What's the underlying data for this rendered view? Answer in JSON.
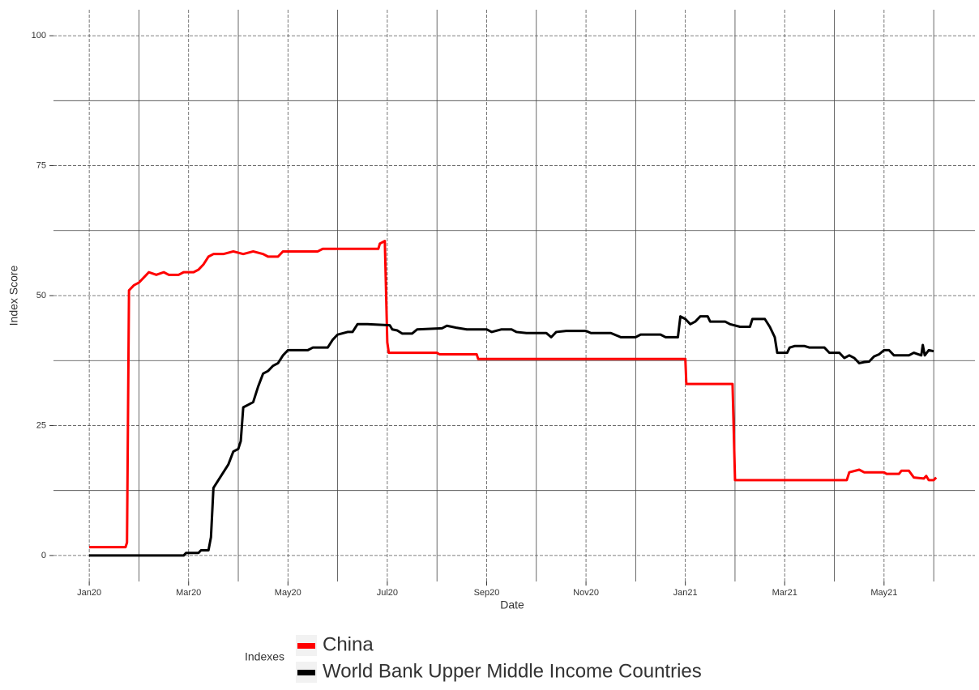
{
  "chart_data": {
    "type": "line",
    "x_label": "Date",
    "y_label": "Index Score",
    "legend_title": "Indexes",
    "legend_position": "bottom",
    "xlim": [
      -0.72,
      17.83
    ],
    "ylim": [
      -5,
      105
    ],
    "xticks": [
      {
        "value": 0,
        "label": "Jan20"
      },
      {
        "value": 2,
        "label": "Mar20"
      },
      {
        "value": 4,
        "label": "May20"
      },
      {
        "value": 6,
        "label": "Jul20"
      },
      {
        "value": 8,
        "label": "Sep20"
      },
      {
        "value": 10,
        "label": "Nov20"
      },
      {
        "value": 12,
        "label": "Jan21"
      },
      {
        "value": 14,
        "label": "Mar21"
      },
      {
        "value": 16,
        "label": "May21"
      }
    ],
    "yticks": [
      0,
      25,
      50,
      75,
      100
    ],
    "x_minor_gridlines": [
      1,
      3,
      5,
      7,
      9,
      11,
      13,
      15,
      17
    ],
    "y_minor_gridlines": [
      12.5,
      37.5,
      62.5,
      87.5
    ],
    "grid": true,
    "series": [
      {
        "name": "China",
        "color": "#ff0000",
        "x": [
          0,
          0.73,
          0.76,
          0.8,
          0.9,
          1.0,
          1.1,
          1.2,
          1.35,
          1.5,
          1.6,
          1.8,
          1.9,
          2.1,
          2.2,
          2.3,
          2.4,
          2.5,
          2.7,
          2.9,
          3.1,
          3.3,
          3.5,
          3.6,
          3.8,
          3.9,
          4.2,
          4.6,
          4.7,
          5.0,
          5.5,
          5.82,
          5.85,
          5.95,
          6.0,
          6.03,
          6.1,
          7.0,
          7.05,
          7.8,
          7.83,
          12.0,
          12.02,
          12.95,
          13.0,
          15.25,
          15.3,
          15.5,
          15.6,
          16.0,
          16.05,
          16.3,
          16.35,
          16.5,
          16.6,
          16.8,
          16.85,
          16.9,
          17.0,
          17.05
        ],
        "values": [
          1.6,
          1.6,
          2.5,
          51,
          52,
          52.5,
          53.5,
          54.5,
          54,
          54.5,
          54,
          54,
          54.5,
          54.5,
          55,
          56,
          57.5,
          58,
          58,
          58.5,
          58,
          58.5,
          58,
          57.5,
          57.5,
          58.5,
          58.5,
          58.5,
          59,
          59,
          59,
          59,
          60,
          60.5,
          41,
          39,
          39,
          39,
          38.7,
          38.7,
          37.8,
          37.8,
          33,
          33,
          14.5,
          14.5,
          16,
          16.5,
          16,
          16,
          15.7,
          15.7,
          16.3,
          16.3,
          15,
          14.8,
          15.3,
          14.5,
          14.5,
          15
        ]
      },
      {
        "name": "World Bank Upper Middle Income Countries",
        "color": "#000000",
        "x": [
          0,
          1.9,
          1.95,
          2.2,
          2.25,
          2.4,
          2.45,
          2.5,
          2.6,
          2.7,
          2.8,
          2.9,
          3.0,
          3.05,
          3.1,
          3.2,
          3.3,
          3.4,
          3.5,
          3.6,
          3.7,
          3.8,
          3.9,
          4.0,
          4.4,
          4.5,
          4.8,
          4.9,
          5.0,
          5.2,
          5.3,
          5.4,
          5.6,
          6.05,
          6.1,
          6.2,
          6.3,
          6.5,
          6.6,
          7.1,
          7.2,
          7.3,
          7.4,
          7.6,
          8.0,
          8.1,
          8.3,
          8.5,
          8.6,
          8.8,
          9.2,
          9.3,
          9.4,
          9.6,
          10.0,
          10.1,
          10.5,
          10.7,
          11.0,
          11.1,
          11.5,
          11.6,
          11.85,
          11.9,
          12.0,
          12.1,
          12.2,
          12.3,
          12.45,
          12.5,
          12.8,
          12.9,
          13.1,
          13.3,
          13.35,
          13.6,
          13.7,
          13.8,
          13.85,
          14.05,
          14.1,
          14.2,
          14.4,
          14.5,
          14.8,
          14.9,
          15.1,
          15.2,
          15.3,
          15.4,
          15.5,
          15.6,
          15.7,
          15.8,
          15.9,
          16.0,
          16.1,
          16.2,
          16.5,
          16.6,
          16.75,
          16.78,
          16.82,
          16.9,
          17.0
        ],
        "values": [
          0,
          0,
          0.5,
          0.5,
          1,
          1,
          3.5,
          13,
          14.5,
          16,
          17.5,
          20,
          20.5,
          22,
          28.5,
          29,
          29.5,
          32.5,
          35,
          35.5,
          36.5,
          37,
          38.5,
          39.5,
          39.5,
          40,
          40,
          41.5,
          42.5,
          43,
          43,
          44.5,
          44.5,
          44.3,
          43.5,
          43.3,
          42.7,
          42.7,
          43.5,
          43.7,
          44.2,
          44,
          43.8,
          43.5,
          43.5,
          43,
          43.5,
          43.5,
          43,
          42.8,
          42.8,
          42,
          43,
          43.2,
          43.2,
          42.8,
          42.8,
          42,
          42,
          42.5,
          42.5,
          42,
          42,
          46,
          45.5,
          44.5,
          45,
          46,
          46,
          45,
          45,
          44.5,
          44,
          44,
          45.5,
          45.5,
          44,
          42,
          39,
          39,
          40,
          40.3,
          40.3,
          40,
          40,
          39,
          39,
          38,
          38.5,
          38,
          37,
          37.2,
          37.3,
          38.3,
          38.7,
          39.5,
          39.5,
          38.5,
          38.5,
          39,
          38.5,
          40.5,
          38.5,
          39.5,
          39.3
        ]
      }
    ]
  }
}
